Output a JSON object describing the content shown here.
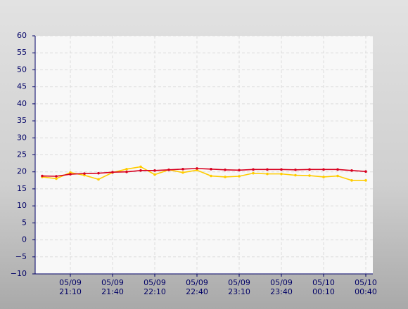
{
  "chart_data": {
    "type": "line",
    "categories": [
      null,
      null,
      "05/09 21:10",
      null,
      null,
      "05/09 21:40",
      null,
      null,
      "05/09 22:10",
      null,
      null,
      "05/09 22:40",
      null,
      null,
      "05/09 23:10",
      null,
      null,
      "05/09 23:40",
      null,
      null,
      "05/10 00:10",
      null,
      null,
      "05/10 00:40"
    ],
    "series": [
      {
        "color": "#ffcc00",
        "values": [
          18.5,
          18.0,
          19.8,
          19.0,
          17.8,
          19.8,
          20.8,
          21.5,
          19.2,
          20.6,
          19.8,
          20.5,
          18.8,
          18.5,
          18.7,
          19.6,
          19.4,
          19.4,
          19.0,
          18.9,
          18.5,
          18.8,
          17.5,
          17.5
        ]
      },
      {
        "color": "#d8001f",
        "values": [
          18.8,
          18.7,
          19.3,
          19.5,
          19.6,
          19.9,
          20.0,
          20.4,
          20.4,
          20.6,
          20.8,
          21.0,
          20.8,
          20.6,
          20.5,
          20.7,
          20.7,
          20.7,
          20.6,
          20.7,
          20.7,
          20.7,
          20.4,
          20.1
        ]
      }
    ],
    "ylim": [
      -10,
      60
    ],
    "yticks": [
      {
        "value": -10,
        "label": "−10"
      },
      {
        "value": -5,
        "label": "−5"
      },
      0,
      5,
      10,
      15,
      20,
      25,
      30,
      35,
      40,
      45,
      50,
      55,
      60
    ],
    "grid": true
  }
}
